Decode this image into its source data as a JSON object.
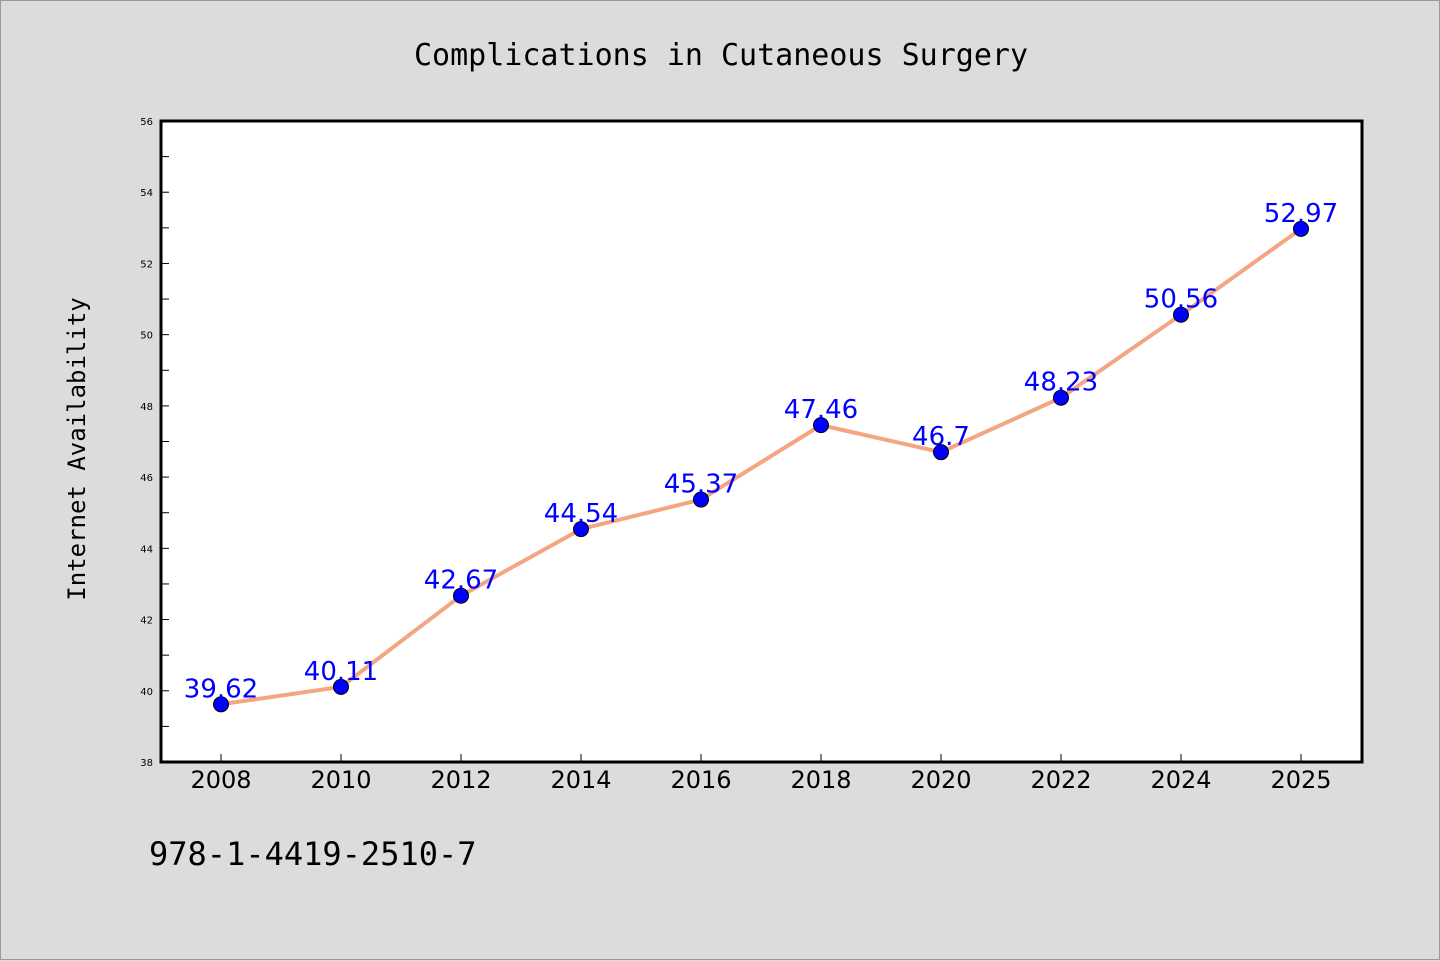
{
  "chart_data": {
    "type": "line",
    "title": "Complications in Cutaneous Surgery",
    "ylabel": "Internet Availability",
    "xlabel": "",
    "categories": [
      "2008",
      "2010",
      "2012",
      "2014",
      "2016",
      "2018",
      "2020",
      "2022",
      "2024",
      "2025"
    ],
    "values": [
      39.62,
      40.11,
      42.67,
      44.54,
      45.37,
      47.46,
      46.7,
      48.23,
      50.56,
      52.97
    ],
    "value_labels": [
      "39.62",
      "40.11",
      "42.67",
      "44.54",
      "45.37",
      "47.46",
      "46.7",
      "48.23",
      "50.56",
      "52.97"
    ],
    "ylim": [
      38,
      56
    ],
    "yticks": [
      "38",
      "40",
      "42",
      "44",
      "46",
      "48",
      "50",
      "52",
      "54",
      "56"
    ],
    "grid": false,
    "line_color": "#f4a582",
    "marker_color": "#0000ff",
    "label_color": "#0000ff"
  },
  "footer": {
    "isbn": "978-1-4419-2510-7"
  }
}
